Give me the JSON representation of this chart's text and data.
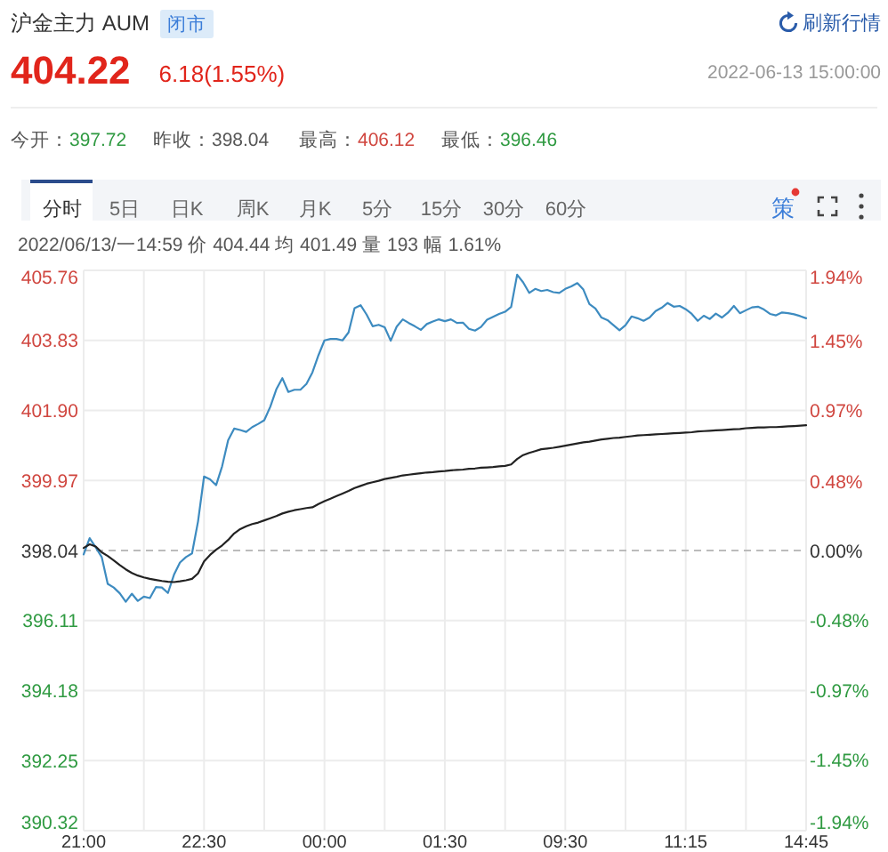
{
  "chart_data": {
    "type": "line",
    "title": "沪金主力 AUM",
    "annotations": [
      "闭市",
      "404.22",
      "6.18(1.55%)",
      "刷新行情",
      "2022-06-13 15:00:00",
      "今开：",
      "397.72",
      "昨收：",
      "398.04",
      "最高：",
      "406.12",
      "最低：",
      "396.46",
      "分时",
      "5日",
      "日K",
      "周K",
      "月K",
      "5分",
      "15分",
      "30分",
      "60分",
      "策",
      "2022/06/13/一14:59 价 404.44 均 401.49 量 193 幅 1.61%"
    ],
    "categories": [
      "21:00",
      null,
      null,
      null,
      null,
      null,
      null,
      null,
      null,
      null,
      null,
      null,
      null,
      null,
      null,
      null,
      null,
      null,
      null,
      null,
      "22:30",
      null,
      null,
      null,
      null,
      null,
      null,
      null,
      null,
      null,
      null,
      null,
      null,
      null,
      null,
      null,
      null,
      null,
      null,
      null,
      "00:00",
      null,
      null,
      null,
      null,
      null,
      null,
      null,
      null,
      null,
      null,
      null,
      null,
      null,
      null,
      null,
      null,
      null,
      null,
      null,
      "01:30",
      null,
      null,
      null,
      null,
      null,
      null,
      null,
      null,
      null,
      null,
      null,
      null,
      null,
      null,
      null,
      null,
      null,
      null,
      null,
      "09:30",
      null,
      null,
      null,
      null,
      null,
      null,
      null,
      null,
      null,
      null,
      null,
      null,
      null,
      null,
      null,
      null,
      null,
      null,
      null,
      "11:15",
      null,
      null,
      null,
      null,
      null,
      null,
      null,
      null,
      null,
      null,
      null,
      null,
      null,
      null,
      null,
      null,
      null,
      null,
      null,
      "14:45"
    ],
    "series": [
      {
        "color": "#3d8bc0",
        "values": [
          397.93,
          398.38,
          398.13,
          397.86,
          397.12,
          397.02,
          396.86,
          396.63,
          396.85,
          396.65,
          396.77,
          396.73,
          397.03,
          397.02,
          396.87,
          397.37,
          397.71,
          397.86,
          397.96,
          398.84,
          400.08,
          400.0,
          399.84,
          400.36,
          401.08,
          401.4,
          401.36,
          401.31,
          401.44,
          401.53,
          401.63,
          402.0,
          402.48,
          402.79,
          402.41,
          402.47,
          402.47,
          402.63,
          402.95,
          403.42,
          403.83,
          403.87,
          403.87,
          403.83,
          404.05,
          404.72,
          404.8,
          404.54,
          404.22,
          404.26,
          404.19,
          403.82,
          404.21,
          404.41,
          404.31,
          404.22,
          404.12,
          404.28,
          404.35,
          404.41,
          404.36,
          404.41,
          404.31,
          404.32,
          404.15,
          404.1,
          404.2,
          404.4,
          404.48,
          404.56,
          404.62,
          404.75,
          405.64,
          405.43,
          405.14,
          405.25,
          405.19,
          405.22,
          405.16,
          405.14,
          405.25,
          405.32,
          405.41,
          405.23,
          404.83,
          404.71,
          404.46,
          404.39,
          404.25,
          404.11,
          404.25,
          404.49,
          404.44,
          404.37,
          404.46,
          404.64,
          404.73,
          404.86,
          404.76,
          404.78,
          404.69,
          404.56,
          404.37,
          404.51,
          404.42,
          404.57,
          404.46,
          404.59,
          404.78,
          404.58,
          404.66,
          404.74,
          404.76,
          404.68,
          404.56,
          404.52,
          404.6,
          404.58,
          404.55,
          404.5,
          404.44
        ]
      },
      {
        "color": "#222222",
        "values": [
          398.11,
          398.21,
          398.15,
          397.99,
          397.89,
          397.77,
          397.64,
          397.52,
          397.42,
          397.35,
          397.3,
          397.26,
          397.23,
          397.2,
          397.18,
          397.17,
          397.19,
          397.22,
          397.26,
          397.41,
          397.74,
          397.92,
          398.06,
          398.18,
          398.33,
          398.51,
          398.63,
          398.71,
          398.77,
          398.81,
          398.87,
          398.93,
          398.99,
          399.06,
          399.11,
          399.15,
          399.18,
          399.21,
          399.23,
          399.32,
          399.4,
          399.47,
          399.54,
          399.61,
          399.68,
          399.76,
          399.82,
          399.88,
          399.92,
          399.96,
          400.01,
          400.04,
          400.07,
          400.11,
          400.13,
          400.15,
          400.17,
          400.19,
          400.2,
          400.22,
          400.23,
          400.25,
          400.26,
          400.27,
          400.29,
          400.3,
          400.32,
          400.33,
          400.34,
          400.36,
          400.37,
          400.41,
          400.56,
          400.67,
          400.73,
          400.78,
          400.83,
          400.85,
          400.87,
          400.9,
          400.93,
          400.96,
          400.99,
          401.02,
          401.04,
          401.07,
          401.1,
          401.12,
          401.14,
          401.15,
          401.17,
          401.19,
          401.21,
          401.22,
          401.23,
          401.24,
          401.25,
          401.26,
          401.27,
          401.28,
          401.29,
          401.3,
          401.32,
          401.33,
          401.34,
          401.35,
          401.36,
          401.37,
          401.38,
          401.39,
          401.41,
          401.42,
          401.43,
          401.43,
          401.44,
          401.44,
          401.45,
          401.46,
          401.47,
          401.48,
          401.49
        ]
      }
    ],
    "ylim": [
      390.32,
      405.76
    ],
    "yticks": [
      390.32,
      392.25,
      394.18,
      396.11,
      398.04,
      399.97,
      {
        "value": 401.9,
        "label": "401.90"
      },
      403.83,
      405.76
    ],
    "y2lim": [
      -1.94,
      1.94
    ],
    "y2ticks": [
      {
        "value": -1.94,
        "label": "-1.94%"
      },
      {
        "value": -1.45,
        "label": "-1.45%"
      },
      {
        "value": -0.97,
        "label": "-0.97%"
      },
      {
        "value": -0.48,
        "label": "-0.48%"
      },
      {
        "value": 0,
        "label": "0.00%"
      },
      {
        "value": 0.48,
        "label": "0.48%"
      },
      {
        "value": 0.97,
        "label": "0.97%"
      },
      {
        "value": 1.45,
        "label": "1.45%"
      },
      {
        "value": 1.94,
        "label": "1.94%"
      }
    ],
    "grid": true,
    "ref_lines": [
      {
        "axis": "y",
        "value": 398.04,
        "color": "#bbbbbb",
        "line_style": "dashed"
      }
    ]
  }
}
